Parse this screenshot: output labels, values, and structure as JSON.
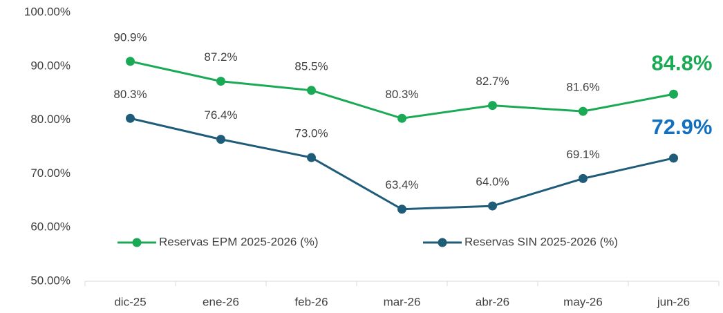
{
  "chart_data": {
    "type": "line",
    "categories": [
      "dic-25",
      "ene-26",
      "feb-26",
      "mar-26",
      "abr-26",
      "may-26",
      "jun-26"
    ],
    "series": [
      {
        "name": "Reservas EPM 2025-2026 (%)",
        "color": "#1aaa55",
        "label_color": "#1aaa55",
        "values": [
          90.9,
          87.2,
          85.5,
          80.3,
          82.7,
          81.6,
          84.8
        ],
        "value_labels": [
          "90.9%",
          "87.2%",
          "85.5%",
          "80.3%",
          "82.7%",
          "81.6%",
          "84.8%"
        ]
      },
      {
        "name": "Reservas SIN 2025-2026 (%)",
        "color": "#1f5c7a",
        "label_color": "#1170c0",
        "values": [
          80.3,
          76.4,
          73.0,
          63.4,
          64.0,
          69.1,
          72.9
        ],
        "value_labels": [
          "80.3%",
          "76.4%",
          "73.0%",
          "63.4%",
          "64.0%",
          "69.1%",
          "72.9%"
        ]
      }
    ],
    "ylim": [
      50,
      100
    ],
    "yticks": [
      {
        "value": 50,
        "label": "50.00%"
      },
      {
        "value": 60,
        "label": "60.00%"
      },
      {
        "value": 70,
        "label": "70.00%"
      },
      {
        "value": 80,
        "label": "80.00%"
      },
      {
        "value": 90,
        "label": "90.00%"
      },
      {
        "value": 100,
        "label": "100.00%"
      }
    ],
    "grid": false,
    "legend": "lower left"
  }
}
